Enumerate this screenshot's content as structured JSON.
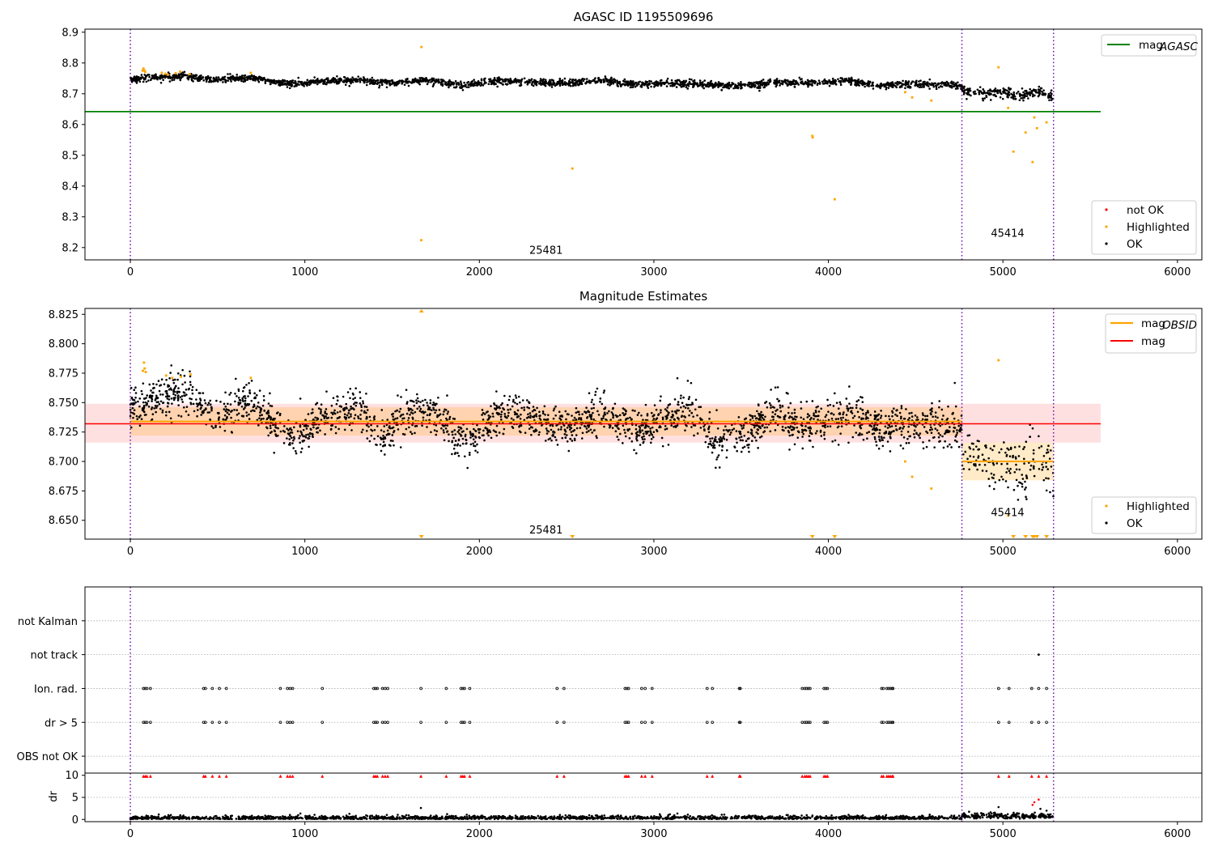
{
  "figure": {
    "width": 1500,
    "height": 1050
  },
  "chart_data": [
    {
      "type": "scatter",
      "title": "AGASC ID 1195509696",
      "xlim": [
        -260,
        6140
      ],
      "ylim": [
        8.16,
        8.91
      ],
      "xticks": [
        0,
        1000,
        2000,
        3000,
        4000,
        5000,
        6000
      ],
      "yticks": [
        8.2,
        8.3,
        8.4,
        8.5,
        8.6,
        8.7,
        8.8,
        8.9
      ],
      "obs_boundaries": [
        0,
        4765,
        5290
      ],
      "obs_labels": [
        {
          "text": "25481",
          "x": 2382,
          "y": 8.19
        },
        {
          "text": "45414",
          "x": 5027,
          "y": 8.245
        }
      ],
      "mag_agasc": 8.642,
      "mag_agasc_xrange": [
        -260,
        5560
      ],
      "legend_upper": {
        "entries": [
          {
            "base": "mag",
            "sub": "AGASC",
            "color": "#008000"
          }
        ],
        "placement": "upper right"
      },
      "legend_lower": {
        "entries": [
          {
            "label": "not OK",
            "color": "#ff0000"
          },
          {
            "label": "Highlighted",
            "color": "#ffa500"
          },
          {
            "label": "OK",
            "color": "#000000"
          }
        ],
        "placement": "lower right"
      },
      "highlighted_points": [
        [
          70,
          8.775
        ],
        [
          75,
          8.782
        ],
        [
          80,
          8.776
        ],
        [
          85,
          8.771
        ],
        [
          180,
          8.768
        ],
        [
          200,
          8.765
        ],
        [
          215,
          8.762
        ],
        [
          260,
          8.767
        ],
        [
          285,
          8.772
        ],
        [
          340,
          8.764
        ],
        [
          690,
          8.768
        ],
        [
          1668,
          8.852
        ],
        [
          1667,
          8.224
        ],
        [
          2533,
          8.457
        ],
        [
          3908,
          8.563
        ],
        [
          3910,
          8.558
        ],
        [
          4036,
          8.357
        ],
        [
          4440,
          8.705
        ],
        [
          4480,
          8.688
        ],
        [
          4590,
          8.678
        ],
        [
          4975,
          8.786
        ],
        [
          5030,
          8.654
        ],
        [
          5060,
          8.512
        ],
        [
          5130,
          8.574
        ],
        [
          5170,
          8.478
        ],
        [
          5180,
          8.623
        ],
        [
          5195,
          8.588
        ],
        [
          5250,
          8.607
        ]
      ],
      "ok_profile": [
        [
          0,
          8.748
        ],
        [
          300,
          8.758
        ],
        [
          500,
          8.745
        ],
        [
          700,
          8.752
        ],
        [
          900,
          8.732
        ],
        [
          1100,
          8.74
        ],
        [
          1300,
          8.745
        ],
        [
          1500,
          8.734
        ],
        [
          1700,
          8.744
        ],
        [
          1900,
          8.728
        ],
        [
          2100,
          8.742
        ],
        [
          2300,
          8.737
        ],
        [
          2500,
          8.734
        ],
        [
          2700,
          8.744
        ],
        [
          2900,
          8.73
        ],
        [
          3100,
          8.735
        ],
        [
          3300,
          8.73
        ],
        [
          3500,
          8.725
        ],
        [
          3700,
          8.738
        ],
        [
          3900,
          8.735
        ],
        [
          4100,
          8.742
        ],
        [
          4300,
          8.728
        ],
        [
          4500,
          8.732
        ],
        [
          4765,
          8.728
        ],
        [
          4766,
          8.71
        ],
        [
          4900,
          8.7
        ],
        [
          5000,
          8.706
        ],
        [
          5100,
          8.692
        ],
        [
          5200,
          8.712
        ],
        [
          5290,
          8.685
        ]
      ],
      "ok_point_count": 2600
    },
    {
      "type": "scatter",
      "title": "Magnitude Estimates",
      "xlim": [
        -260,
        6140
      ],
      "ylim": [
        8.634,
        8.83
      ],
      "xticks": [
        0,
        1000,
        2000,
        3000,
        4000,
        5000,
        6000
      ],
      "yticks": [
        8.65,
        8.675,
        8.7,
        8.725,
        8.75,
        8.775,
        8.8,
        8.825
      ],
      "ytick_labels": [
        "8.650",
        "8.675",
        "8.700",
        "8.725",
        "8.750",
        "8.775",
        "8.800",
        "8.825"
      ],
      "obs_boundaries": [
        0,
        4765,
        5290
      ],
      "obs_labels": [
        {
          "text": "25481",
          "x": 2382,
          "y": 8.6415
        },
        {
          "text": "45414",
          "x": 5027,
          "y": 8.6565
        }
      ],
      "mag_line": {
        "value": 8.732,
        "band": [
          8.716,
          8.749
        ],
        "xrange": [
          -260,
          5560
        ],
        "color": "#ff0000"
      },
      "mag_obsid": [
        {
          "x0": 0,
          "x1": 4765,
          "value": 8.734,
          "band": [
            8.722,
            8.746
          ]
        },
        {
          "x0": 4765,
          "x1": 5290,
          "value": 8.7,
          "band": [
            8.684,
            8.716
          ]
        }
      ],
      "legend_upper": {
        "entries": [
          {
            "base": "mag",
            "sub": "OBSID",
            "color": "#ffa500"
          },
          {
            "label": "mag",
            "color": "#ff0000"
          }
        ],
        "placement": "upper right"
      },
      "legend_lower": {
        "entries": [
          {
            "label": "Highlighted",
            "color": "#ffa500"
          },
          {
            "label": "OK",
            "color": "#000000"
          }
        ],
        "placement": "lower right"
      },
      "highlighted_points": [
        [
          72,
          8.777
        ],
        [
          78,
          8.784
        ],
        [
          82,
          8.779
        ],
        [
          88,
          8.776
        ],
        [
          205,
          8.773
        ],
        [
          240,
          8.771
        ],
        [
          290,
          8.772
        ],
        [
          345,
          8.774
        ],
        [
          690,
          8.771
        ],
        [
          4440,
          8.7
        ],
        [
          4480,
          8.687
        ],
        [
          4590,
          8.677
        ],
        [
          4975,
          8.786
        ],
        [
          5030,
          8.654
        ]
      ],
      "offscale_high": [
        1668
      ],
      "offscale_low": [
        1668,
        2533,
        3908,
        4036,
        5060,
        5130,
        5170,
        5180,
        5195,
        5250
      ],
      "ok_profile": [
        [
          0,
          8.748
        ],
        [
          150,
          8.752
        ],
        [
          250,
          8.76
        ],
        [
          350,
          8.755
        ],
        [
          450,
          8.742
        ],
        [
          550,
          8.738
        ],
        [
          650,
          8.752
        ],
        [
          750,
          8.745
        ],
        [
          850,
          8.73
        ],
        [
          950,
          8.72
        ],
        [
          1100,
          8.738
        ],
        [
          1300,
          8.745
        ],
        [
          1450,
          8.722
        ],
        [
          1600,
          8.742
        ],
        [
          1750,
          8.742
        ],
        [
          1850,
          8.722
        ],
        [
          1950,
          8.715
        ],
        [
          2100,
          8.74
        ],
        [
          2300,
          8.735
        ],
        [
          2500,
          8.728
        ],
        [
          2700,
          8.742
        ],
        [
          2900,
          8.725
        ],
        [
          3100,
          8.738
        ],
        [
          3200,
          8.745
        ],
        [
          3350,
          8.718
        ],
        [
          3500,
          8.722
        ],
        [
          3600,
          8.735
        ],
        [
          3700,
          8.742
        ],
        [
          3850,
          8.728
        ],
        [
          4000,
          8.738
        ],
        [
          4100,
          8.74
        ],
        [
          4300,
          8.728
        ],
        [
          4500,
          8.732
        ],
        [
          4765,
          8.73
        ],
        [
          4766,
          8.712
        ],
        [
          4900,
          8.7
        ],
        [
          5000,
          8.702
        ],
        [
          5100,
          8.69
        ],
        [
          5200,
          8.71
        ],
        [
          5290,
          8.684
        ]
      ],
      "ok_point_count": 2600
    },
    {
      "type": "scatter",
      "title": "",
      "xlim": [
        -260,
        6140
      ],
      "ylim_flags": [
        -0.5,
        5.0
      ],
      "ycategories": [
        "OBS not OK",
        "dr > 5",
        "Ion. rad.",
        "not track",
        "not Kalman"
      ],
      "obs_boundaries": [
        0,
        4765,
        5290
      ],
      "flag_times": [
        75,
        85,
        95,
        115,
        420,
        430,
        470,
        510,
        550,
        860,
        900,
        915,
        930,
        1100,
        1395,
        1405,
        1415,
        1445,
        1460,
        1475,
        1665,
        1810,
        1895,
        1905,
        1915,
        1945,
        2445,
        2485,
        2835,
        2845,
        2855,
        2930,
        2950,
        2990,
        3305,
        3335,
        3490,
        3495,
        3850,
        3865,
        3875,
        3885,
        3895,
        3975,
        3985,
        3995,
        4305,
        4315,
        4335,
        4345,
        4355,
        4365,
        4370,
        4975,
        5035,
        5165,
        5205,
        5250
      ],
      "not_track_times": [
        5205
      ]
    },
    {
      "type": "scatter",
      "title": "",
      "xlim": [
        -260,
        6140
      ],
      "ylim": [
        -0.5,
        10.5
      ],
      "ylabel": "dr",
      "xticks": [
        0,
        1000,
        2000,
        3000,
        4000,
        5000,
        6000
      ],
      "yticks": [
        0,
        5,
        10
      ],
      "obs_boundaries": [
        0,
        4765,
        5290
      ],
      "clipped_value": 10,
      "ok_point_count": 2000,
      "extra_points": [
        [
          1665,
          2.6
        ],
        [
          5170,
          3.3
        ],
        [
          5180,
          3.9
        ],
        [
          5205,
          4.5
        ],
        [
          5215,
          2.4
        ],
        [
          5250,
          2.0
        ],
        [
          4975,
          2.8
        ]
      ]
    }
  ]
}
